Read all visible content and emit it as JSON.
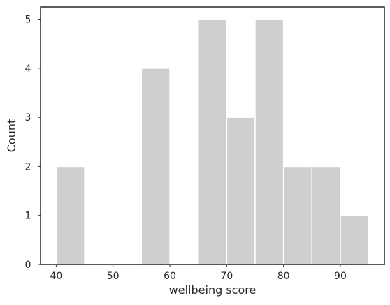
{
  "chart_data": {
    "type": "bar",
    "subtype": "histogram",
    "xlabel": "wellbeing score",
    "ylabel": "Count",
    "xlim": [
      37.25,
      97.75
    ],
    "ylim": [
      0,
      5.25
    ],
    "xticks": [
      40,
      50,
      60,
      70,
      80,
      90
    ],
    "yticks": [
      0,
      1,
      2,
      3,
      4,
      5
    ],
    "bins": [
      {
        "start": 40,
        "end": 45,
        "count": 2
      },
      {
        "start": 45,
        "end": 50,
        "count": 0
      },
      {
        "start": 50,
        "end": 55,
        "count": 0
      },
      {
        "start": 55,
        "end": 60,
        "count": 4
      },
      {
        "start": 60,
        "end": 65,
        "count": 0
      },
      {
        "start": 65,
        "end": 70,
        "count": 5
      },
      {
        "start": 70,
        "end": 75,
        "count": 3
      },
      {
        "start": 75,
        "end": 80,
        "count": 5
      },
      {
        "start": 80,
        "end": 85,
        "count": 2
      },
      {
        "start": 85,
        "end": 90,
        "count": 2
      },
      {
        "start": 90,
        "end": 95,
        "count": 1
      }
    ],
    "bar_color": "#cfcfcf",
    "bar_edge_color": "#ffffff",
    "axes_color": "#262626",
    "grid": false,
    "legend": "none"
  }
}
